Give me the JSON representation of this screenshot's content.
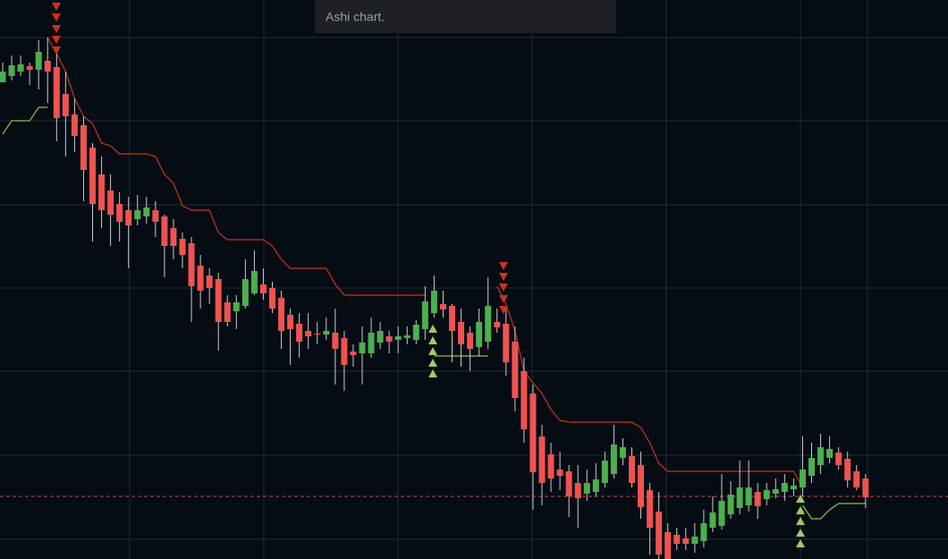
{
  "chart_data": {
    "type": "candlestick",
    "title": "Ashi chart.",
    "categories": [
      null,
      null,
      null,
      null,
      null,
      null,
      null,
      null,
      null,
      null,
      null,
      null,
      null,
      null,
      null,
      null,
      null,
      null,
      null,
      null,
      null,
      null,
      null,
      null,
      null,
      null,
      null,
      null,
      null,
      null,
      null,
      null,
      null,
      null,
      null,
      null,
      null,
      null,
      null,
      null,
      null,
      null,
      null,
      null,
      null,
      null,
      null,
      null,
      null,
      null,
      null,
      null,
      null,
      null,
      null,
      null,
      null,
      null,
      null,
      null,
      null,
      null,
      null,
      null,
      null,
      null,
      null,
      null,
      null,
      null,
      null,
      null,
      null,
      null,
      null,
      null,
      null,
      null,
      null,
      null,
      null,
      null,
      null,
      null,
      null,
      null,
      null,
      null,
      null,
      null,
      null,
      null,
      null,
      null,
      null,
      null,
      null
    ],
    "open": [
      533,
      540,
      545,
      551,
      547,
      557,
      550,
      520,
      497,
      485,
      460,
      430,
      412,
      397,
      390,
      380,
      383,
      390,
      383,
      370,
      358,
      353,
      328,
      317,
      313,
      287,
      277,
      283,
      297,
      307,
      303,
      292,
      273,
      263,
      255,
      252,
      251,
      253,
      247,
      232,
      230,
      230,
      242,
      249,
      245,
      247,
      245,
      257,
      275,
      285,
      283,
      265,
      253,
      237,
      243,
      265,
      263,
      243,
      210,
      185,
      137,
      117,
      100,
      98,
      85,
      73,
      75,
      85,
      95,
      113,
      115,
      105,
      77,
      53,
      30,
      27,
      23,
      17,
      20,
      35,
      37,
      50,
      57,
      60,
      75,
      67,
      73,
      75,
      78,
      80,
      93,
      105,
      113,
      119,
      112,
      98,
      90
    ],
    "high": [
      555,
      563,
      563,
      555,
      580,
      583,
      570,
      545,
      515,
      495,
      465,
      450,
      430,
      410,
      405,
      407,
      405,
      400,
      385,
      380,
      365,
      360,
      340,
      325,
      320,
      295,
      295,
      335,
      345,
      325,
      310,
      300,
      280,
      275,
      275,
      265,
      270,
      280,
      255,
      240,
      260,
      270,
      265,
      255,
      260,
      260,
      267,
      305,
      317,
      300,
      285,
      280,
      260,
      280,
      315,
      280,
      280,
      260,
      225,
      195,
      150,
      130,
      120,
      105,
      105,
      100,
      107,
      120,
      150,
      135,
      125,
      120,
      85,
      75,
      40,
      35,
      35,
      40,
      55,
      70,
      95,
      87,
      110,
      110,
      85,
      85,
      90,
      95,
      90,
      137,
      130,
      140,
      137,
      125,
      120,
      105,
      95
    ],
    "low": [
      533,
      535,
      540,
      530,
      525,
      510,
      467,
      450,
      455,
      400,
      355,
      370,
      350,
      355,
      325,
      373,
      375,
      360,
      315,
      335,
      325,
      265,
      280,
      285,
      233,
      260,
      257,
      280,
      295,
      290,
      275,
      235,
      217,
      225,
      235,
      240,
      245,
      195,
      188,
      215,
      195,
      225,
      235,
      230,
      230,
      240,
      240,
      245,
      270,
      270,
      220,
      215,
      210,
      227,
      235,
      253,
      205,
      165,
      130,
      55,
      60,
      75,
      77,
      47,
      35,
      65,
      70,
      80,
      90,
      105,
      80,
      45,
      5,
      0,
      0,
      10,
      10,
      7,
      13,
      30,
      33,
      45,
      50,
      53,
      45,
      60,
      68,
      65,
      70,
      70,
      85,
      95,
      107,
      100,
      80,
      77,
      57
    ],
    "close": [
      545,
      552,
      553,
      547,
      567,
      545,
      493,
      495,
      473,
      435,
      397,
      390,
      385,
      377,
      373,
      390,
      393,
      377,
      350,
      350,
      340,
      305,
      300,
      303,
      265,
      265,
      287,
      313,
      322,
      297,
      280,
      255,
      257,
      243,
      249,
      251,
      255,
      235,
      217,
      228,
      242,
      253,
      255,
      243,
      249,
      250,
      262,
      288,
      300,
      279,
      255,
      240,
      235,
      265,
      283,
      259,
      220,
      180,
      145,
      97,
      85,
      90,
      93,
      70,
      68,
      85,
      89,
      110,
      128,
      125,
      85,
      58,
      35,
      5,
      0,
      17,
      17,
      25,
      40,
      52,
      65,
      72,
      80,
      80,
      59,
      77,
      78,
      85,
      82,
      100,
      113,
      125,
      123,
      105,
      88,
      80,
      69
    ],
    "up_color": "#4caf50",
    "down_color": "#ef5350",
    "lines": [
      {
        "color": "#c9341c",
        "values": [
          null,
          null,
          null,
          null,
          null,
          583,
          565,
          545,
          515,
          495,
          487,
          465,
          462,
          453,
          453,
          453,
          453,
          450,
          430,
          420,
          395,
          390,
          390,
          390,
          365,
          357,
          357,
          357,
          357,
          357,
          350,
          335,
          325,
          325,
          325,
          325,
          325,
          307,
          295,
          295,
          295,
          295,
          295,
          295,
          295,
          295,
          295,
          295,
          null,
          null,
          null,
          null,
          null,
          null,
          null,
          305,
          285,
          255,
          210,
          197,
          185,
          167,
          155,
          153,
          153,
          153,
          153,
          153,
          153,
          153,
          153,
          147,
          130,
          107,
          98,
          98,
          98,
          98,
          98,
          98,
          98,
          98,
          98,
          98,
          98,
          98,
          98,
          98,
          98,
          80,
          null,
          null,
          null,
          null,
          null,
          null,
          null
        ]
      },
      {
        "color": "#8bc34a",
        "values": [
          475,
          490,
          490,
          490,
          505,
          505,
          null,
          null,
          null,
          null,
          null,
          null,
          null,
          null,
          null,
          null,
          null,
          null,
          null,
          null,
          null,
          null,
          null,
          null,
          null,
          null,
          null,
          null,
          null,
          null,
          null,
          null,
          null,
          null,
          null,
          null,
          null,
          null,
          null,
          null,
          null,
          null,
          null,
          null,
          null,
          null,
          null,
          null,
          227,
          227,
          227,
          227,
          227,
          227,
          227,
          null,
          null,
          null,
          null,
          null,
          null,
          null,
          null,
          null,
          null,
          null,
          null,
          null,
          null,
          null,
          null,
          null,
          null,
          null,
          null,
          null,
          null,
          null,
          null,
          null,
          null,
          null,
          null,
          null,
          null,
          null,
          null,
          null,
          null,
          60,
          45,
          45,
          55,
          62,
          62,
          62,
          62
        ]
      }
    ],
    "ylim": [
      0,
      625
    ]
  }
}
